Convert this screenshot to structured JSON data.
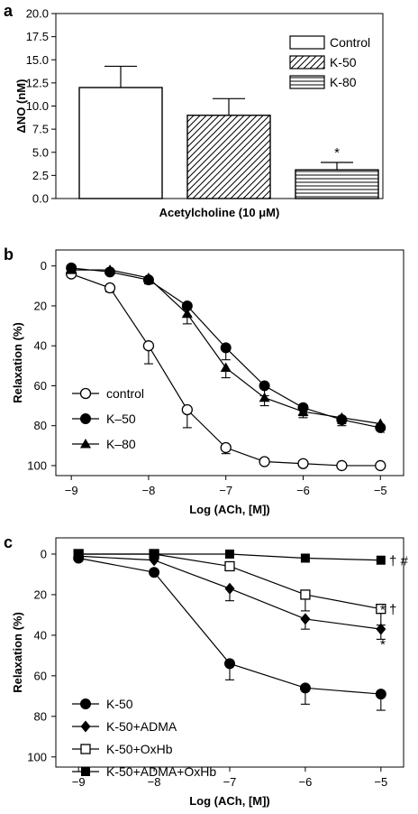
{
  "chart_data": [
    {
      "panel": "a",
      "type": "bar",
      "ylabel": "ΔNO (nM)",
      "xlabel": "Acetylcholine (10 μM)",
      "ylim": [
        0,
        20
      ],
      "yticks": [
        "0.0",
        "2.5",
        "5.0",
        "7.5",
        "10.0",
        "12.5",
        "15.0",
        "17.5",
        "20.0"
      ],
      "categories": [
        "Control",
        "K-50",
        "K-80"
      ],
      "values": [
        12.0,
        9.0,
        3.1
      ],
      "errors": [
        2.3,
        1.8,
        0.8
      ],
      "annotations": [
        "",
        "",
        "*"
      ],
      "legend": [
        "Control",
        "K-50",
        "K-80"
      ],
      "legend_position": "top-right"
    },
    {
      "panel": "b",
      "type": "line",
      "ylabel": "Relaxation (%)",
      "xlabel": "Log (ACh, [M])",
      "xlim": [
        -9.2,
        -4.7
      ],
      "ylim": [
        105,
        -8
      ],
      "inverted_y": true,
      "xticks": [
        "−9",
        "−8",
        "−7",
        "−6",
        "−5"
      ],
      "yticks": [
        "0",
        "20",
        "40",
        "60",
        "80",
        "100"
      ],
      "legend_position": "bottom-left",
      "series": [
        {
          "name": "control",
          "marker": "open-circle",
          "x": [
            -9,
            -8.5,
            -8,
            -7.5,
            -7,
            -6.5,
            -6,
            -5.5,
            -5
          ],
          "y": [
            4,
            11,
            40,
            72,
            91,
            98,
            99,
            100,
            100
          ],
          "err": [
            0,
            2,
            9,
            9,
            3,
            0,
            0,
            0,
            0
          ]
        },
        {
          "name": "K–50",
          "marker": "filled-circle",
          "x": [
            -9,
            -8.5,
            -8,
            -7.5,
            -7,
            -6.5,
            -6,
            -5.5,
            -5
          ],
          "y": [
            1,
            3,
            7,
            20,
            41,
            60,
            71,
            77,
            81
          ],
          "err": [
            0,
            0,
            0,
            5,
            6,
            5,
            4,
            3,
            0
          ]
        },
        {
          "name": "K–80",
          "marker": "filled-triangle",
          "x": [
            -9,
            -8.5,
            -8,
            -7.5,
            -7,
            -6.5,
            -6,
            -5.5,
            -5
          ],
          "y": [
            2,
            2,
            6,
            24,
            51,
            66,
            73,
            76,
            79
          ],
          "err": [
            0,
            0,
            3,
            5,
            5,
            4,
            3,
            3,
            0
          ]
        }
      ],
      "annotations": [
        "*"
      ]
    },
    {
      "panel": "c",
      "type": "line",
      "ylabel": "Relaxation (%)",
      "xlabel": "Log (ACh, [M])",
      "xlim": [
        -9.3,
        -4.7
      ],
      "ylim": [
        105,
        -8
      ],
      "inverted_y": true,
      "xticks": [
        "−9",
        "−8",
        "−7",
        "−6",
        "−5"
      ],
      "yticks": [
        "0",
        "20",
        "40",
        "60",
        "80",
        "100"
      ],
      "legend_position": "bottom-left",
      "series": [
        {
          "name": "K-50",
          "marker": "filled-circle",
          "x": [
            -9,
            -8,
            -7,
            -6,
            -5
          ],
          "y": [
            2,
            9,
            54,
            66,
            69
          ],
          "err": [
            0,
            0,
            8,
            8,
            8
          ],
          "annotation": ""
        },
        {
          "name": "K-50+ADMA",
          "marker": "filled-diamond",
          "x": [
            -9,
            -8,
            -7,
            -6,
            -5
          ],
          "y": [
            1,
            3,
            17,
            32,
            37
          ],
          "err": [
            0,
            0,
            6,
            5,
            5
          ],
          "annotation": "*"
        },
        {
          "name": "K-50+OxHb",
          "marker": "open-square",
          "x": [
            -9,
            -8,
            -7,
            -6,
            -5
          ],
          "y": [
            0,
            0,
            6,
            20,
            27
          ],
          "err": [
            0,
            0,
            0,
            8,
            8
          ],
          "annotation": "* †"
        },
        {
          "name": "K-50+ADMA+OxHb",
          "marker": "filled-square",
          "x": [
            -9,
            -8,
            -7,
            -6,
            -5
          ],
          "y": [
            0,
            0,
            0,
            2,
            3
          ],
          "err": [
            0,
            0,
            0,
            0,
            0
          ],
          "annotation": "* † #"
        }
      ]
    }
  ]
}
